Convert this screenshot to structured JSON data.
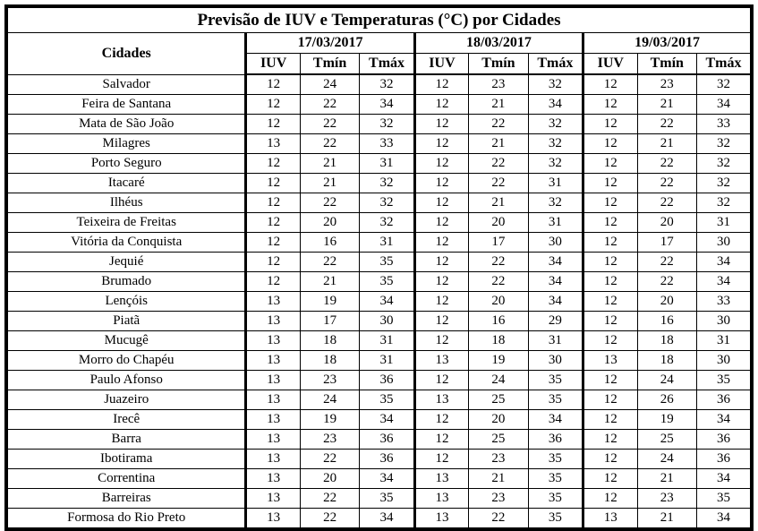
{
  "title": "Previsão de IUV e Temperaturas (°C) por Cidades",
  "table": {
    "city_header": "Cidades",
    "date_groups": [
      "17/03/2017",
      "18/03/2017",
      "19/03/2017"
    ],
    "sub_headers": [
      "IUV",
      "Tmín",
      "Tmáx"
    ],
    "rows": [
      {
        "city": "Salvador",
        "values": [
          12,
          24,
          32,
          12,
          23,
          32,
          12,
          23,
          32
        ]
      },
      {
        "city": "Feira de Santana",
        "values": [
          12,
          22,
          34,
          12,
          21,
          34,
          12,
          21,
          34
        ]
      },
      {
        "city": "Mata de São João",
        "values": [
          12,
          22,
          32,
          12,
          22,
          32,
          12,
          22,
          33
        ]
      },
      {
        "city": "Milagres",
        "values": [
          13,
          22,
          33,
          12,
          21,
          32,
          12,
          21,
          32
        ]
      },
      {
        "city": "Porto Seguro",
        "values": [
          12,
          21,
          31,
          12,
          22,
          32,
          12,
          22,
          32
        ]
      },
      {
        "city": "Itacaré",
        "values": [
          12,
          21,
          32,
          12,
          22,
          31,
          12,
          22,
          32
        ]
      },
      {
        "city": "Ilhéus",
        "values": [
          12,
          22,
          32,
          12,
          21,
          32,
          12,
          22,
          32
        ]
      },
      {
        "city": "Teixeira de Freitas",
        "values": [
          12,
          20,
          32,
          12,
          20,
          31,
          12,
          20,
          31
        ]
      },
      {
        "city": "Vitória da Conquista",
        "values": [
          12,
          16,
          31,
          12,
          17,
          30,
          12,
          17,
          30
        ]
      },
      {
        "city": "Jequié",
        "values": [
          12,
          22,
          35,
          12,
          22,
          34,
          12,
          22,
          34
        ]
      },
      {
        "city": "Brumado",
        "values": [
          12,
          21,
          35,
          12,
          22,
          34,
          12,
          22,
          34
        ]
      },
      {
        "city": "Lençóis",
        "values": [
          13,
          19,
          34,
          12,
          20,
          34,
          12,
          20,
          33
        ]
      },
      {
        "city": "Piatã",
        "values": [
          13,
          17,
          30,
          12,
          16,
          29,
          12,
          16,
          30
        ]
      },
      {
        "city": "Mucugê",
        "values": [
          13,
          18,
          31,
          12,
          18,
          31,
          12,
          18,
          31
        ]
      },
      {
        "city": "Morro do Chapéu",
        "values": [
          13,
          18,
          31,
          13,
          19,
          30,
          13,
          18,
          30
        ]
      },
      {
        "city": "Paulo Afonso",
        "values": [
          13,
          23,
          36,
          12,
          24,
          35,
          12,
          24,
          35
        ]
      },
      {
        "city": "Juazeiro",
        "values": [
          13,
          24,
          35,
          13,
          25,
          35,
          12,
          26,
          36
        ]
      },
      {
        "city": "Irecê",
        "values": [
          13,
          19,
          34,
          12,
          20,
          34,
          12,
          19,
          34
        ]
      },
      {
        "city": "Barra",
        "values": [
          13,
          23,
          36,
          12,
          25,
          36,
          12,
          25,
          36
        ]
      },
      {
        "city": "Ibotirama",
        "values": [
          13,
          22,
          36,
          12,
          23,
          35,
          12,
          24,
          36
        ]
      },
      {
        "city": "Correntina",
        "values": [
          13,
          20,
          34,
          13,
          21,
          35,
          12,
          21,
          34
        ]
      },
      {
        "city": "Barreiras",
        "values": [
          13,
          22,
          35,
          13,
          23,
          35,
          12,
          23,
          35
        ]
      },
      {
        "city": "Formosa do Rio Preto",
        "values": [
          13,
          22,
          34,
          13,
          22,
          35,
          13,
          21,
          34
        ]
      }
    ]
  }
}
